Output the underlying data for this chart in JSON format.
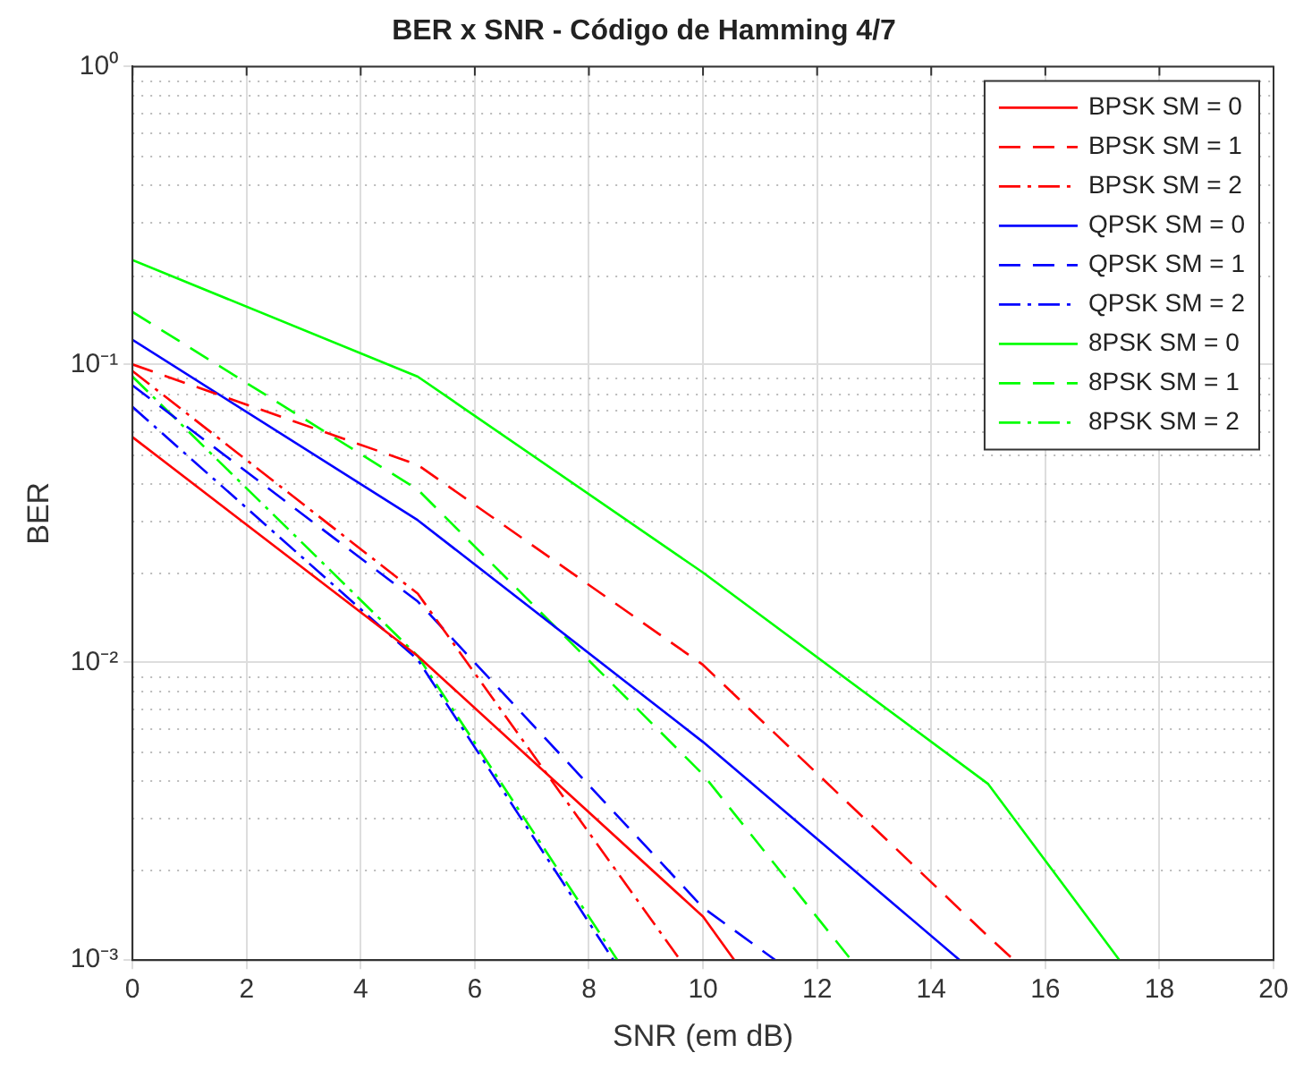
{
  "chart_data": {
    "type": "line",
    "title": "BER x SNR - Código de Hamming 4/7",
    "xlabel": "SNR (em dB)",
    "ylabel": "BER",
    "xlim": [
      0,
      20
    ],
    "xticks": [
      0,
      2,
      4,
      6,
      8,
      10,
      12,
      14,
      16,
      18,
      20
    ],
    "ylim": [
      0.001,
      1
    ],
    "yticks": [
      {
        "value": 0.001,
        "label": "10⁻³"
      },
      {
        "value": 0.01,
        "label": "10⁻²"
      },
      {
        "value": 0.1,
        "label": "10⁻¹"
      },
      {
        "value": 1,
        "label": "10⁰"
      }
    ],
    "log": "y",
    "grid": true,
    "legend": "top right",
    "marker": "none",
    "series": [
      {
        "name": "BPSK SM = 0",
        "color": "#ff0000",
        "line_style": "solid",
        "x": [
          0,
          5,
          10,
          10.55
        ],
        "values": [
          0.057,
          0.0105,
          0.0014,
          0.001
        ]
      },
      {
        "name": "BPSK SM = 1",
        "color": "#ff0000",
        "line_style": "dashed",
        "x": [
          0,
          5,
          10,
          15,
          15.45
        ],
        "values": [
          0.1,
          0.046,
          0.0098,
          0.0012,
          0.001
        ]
      },
      {
        "name": "BPSK SM = 2",
        "color": "#ff0000",
        "line_style": "dashdot",
        "x": [
          0,
          5,
          9.6
        ],
        "values": [
          0.095,
          0.017,
          0.001
        ]
      },
      {
        "name": "QPSK SM = 0",
        "color": "#0000ff",
        "line_style": "solid",
        "x": [
          0,
          5,
          10,
          14.5
        ],
        "values": [
          0.121,
          0.03,
          0.0054,
          0.001
        ]
      },
      {
        "name": "QPSK SM = 1",
        "color": "#0000ff",
        "line_style": "dashed",
        "x": [
          0,
          5,
          10,
          11.27
        ],
        "values": [
          0.085,
          0.016,
          0.0015,
          0.001
        ]
      },
      {
        "name": "QPSK SM = 2",
        "color": "#0000ff",
        "line_style": "dashdot",
        "x": [
          0,
          5,
          8.43
        ],
        "values": [
          0.072,
          0.0102,
          0.001
        ]
      },
      {
        "name": "8PSK SM = 0",
        "color": "#00ff00",
        "line_style": "solid",
        "x": [
          0,
          5,
          10,
          15,
          17.3
        ],
        "values": [
          0.224,
          0.091,
          0.02,
          0.0039,
          0.001
        ]
      },
      {
        "name": "8PSK SM = 1",
        "color": "#00ff00",
        "line_style": "dashed",
        "x": [
          0,
          5,
          10,
          12.6
        ],
        "values": [
          0.15,
          0.038,
          0.0042,
          0.001
        ]
      },
      {
        "name": "8PSK SM = 2",
        "color": "#00ff00",
        "line_style": "dashdot",
        "x": [
          0,
          5,
          8.5
        ],
        "values": [
          0.091,
          0.0105,
          0.001
        ]
      }
    ]
  }
}
